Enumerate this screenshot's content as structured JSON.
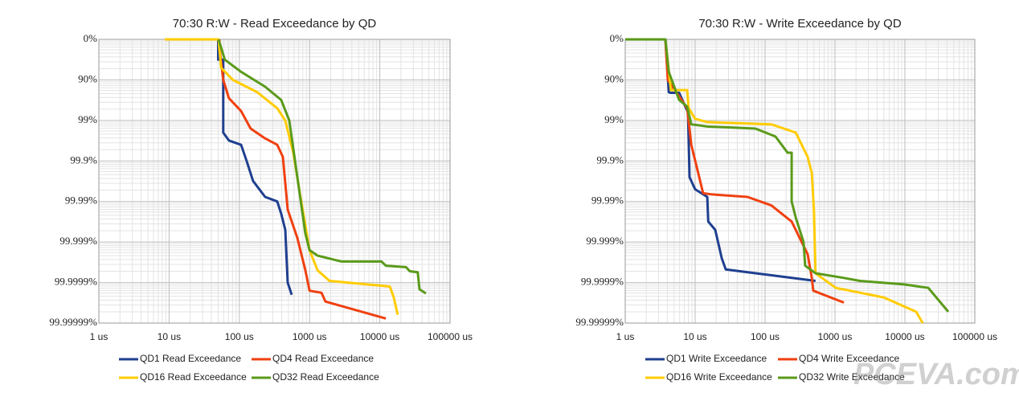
{
  "chart_data": [
    {
      "type": "line",
      "title": "70:30 R:W - Read Exceedance by QD",
      "xscale": "log",
      "yscale": "nines",
      "grid": true,
      "xlim": [
        1,
        100000
      ],
      "xticks": [
        {
          "value": 1,
          "label": "1 us"
        },
        {
          "value": 10,
          "label": "10 us"
        },
        {
          "value": 100,
          "label": "100 us"
        },
        {
          "value": 1000,
          "label": "1000 us"
        },
        {
          "value": 10000,
          "label": "10000 us"
        },
        {
          "value": 100000,
          "label": "100000 us"
        }
      ],
      "ylim": [
        0,
        99.99999
      ],
      "yticks": [
        {
          "value": 0,
          "label": "0%"
        },
        {
          "value": 90,
          "label": "90%"
        },
        {
          "value": 99,
          "label": "99%"
        },
        {
          "value": 99.9,
          "label": "99.9%"
        },
        {
          "value": 99.99,
          "label": "99.99%"
        },
        {
          "value": 99.999,
          "label": "99.999%"
        },
        {
          "value": 99.9999,
          "label": "99.9999%"
        },
        {
          "value": 99.99999,
          "label": "99.99999%"
        }
      ],
      "series": [
        {
          "name": "QD1 Read Exceedance",
          "color": "#1f3f8f",
          "x": [
            50,
            50,
            59,
            59,
            71,
            106,
            127,
            157,
            233,
            347,
            395,
            451,
            488,
            557
          ],
          "values": [
            0,
            68.4,
            68.4,
            99.5,
            99.68,
            99.75,
            99.9,
            99.968,
            99.987,
            99.99,
            99.995,
            99.998,
            99.9999,
            99.99995
          ]
        },
        {
          "name": "QD4 Read Exceedance",
          "color": "#f04010",
          "x": [
            52,
            52,
            59,
            71,
            106,
            145,
            233,
            347,
            417,
            488,
            670,
            871,
            1000,
            1480,
            1680,
            12200
          ],
          "values": [
            0,
            36.9,
            90,
            96.45,
            98.3,
            99.37,
            99.64,
            99.75,
            99.874,
            99.9937,
            99.99874,
            99.9998,
            99.999937,
            99.999944,
            99.999966,
            99.999987
          ]
        },
        {
          "name": "QD16 Read Exceedance",
          "color": "#ffcc00",
          "x": [
            8.7,
            50.7,
            54.8,
            81,
            179,
            347,
            451,
            586,
            763,
            1000,
            1300,
            1920,
            13900,
            15800,
            18000
          ],
          "values": [
            0,
            0,
            80,
            90,
            95,
            98,
            99,
            99.84,
            99.99,
            99.99937,
            99.9998,
            99.99989,
            99.99992,
            99.999957,
            99.999984
          ]
        },
        {
          "name": "QD32 Read Exceedance",
          "color": "#5a9a1a",
          "x": [
            50.7,
            62,
            106,
            233,
            395,
            515,
            670,
            871,
            1000,
            1300,
            2850,
            10600,
            12200,
            23600,
            26800,
            34700,
            36700,
            45400
          ],
          "values": [
            0,
            68.4,
            84.2,
            93.2,
            96.8,
            99,
            99.96,
            99.9984,
            99.99937,
            99.99954,
            99.99967,
            99.99967,
            99.99974,
            99.99976,
            99.99981,
            99.99982,
            99.999932,
            99.999946
          ]
        }
      ]
    },
    {
      "type": "line",
      "title": "70:30 R:W - Write Exceedance by QD",
      "xscale": "log",
      "yscale": "nines",
      "grid": true,
      "xlim": [
        1,
        100000
      ],
      "xticks": [
        {
          "value": 1,
          "label": "1 us"
        },
        {
          "value": 10,
          "label": "10 us"
        },
        {
          "value": 100,
          "label": "100 us"
        },
        {
          "value": 1000,
          "label": "1000 us"
        },
        {
          "value": 10000,
          "label": "10000 us"
        },
        {
          "value": 100000,
          "label": "100000 us"
        }
      ],
      "ylim": [
        0,
        99.99999
      ],
      "yticks": [
        {
          "value": 0,
          "label": "0%"
        },
        {
          "value": 90,
          "label": "90%"
        },
        {
          "value": 99,
          "label": "99%"
        },
        {
          "value": 99.9,
          "label": "99.9%"
        },
        {
          "value": 99.99,
          "label": "99.99%"
        },
        {
          "value": 99.999,
          "label": "99.999%"
        },
        {
          "value": 99.9999,
          "label": "99.9999%"
        },
        {
          "value": 99.99999,
          "label": "99.99999%"
        }
      ],
      "series": [
        {
          "name": "QD1 Write Exceedance",
          "color": "#1f3f8f",
          "x": [
            3.76,
            4.2,
            4.4,
            5.9,
            7,
            7.9,
            8.3,
            10,
            14.9,
            15.4,
            19.4,
            24,
            27.4,
            527
          ],
          "values": [
            0,
            95,
            95.2,
            95.2,
            97.5,
            98.4,
            99.96,
            99.98,
            99.987,
            99.9968,
            99.998,
            99.9996,
            99.99979,
            99.99989
          ]
        },
        {
          "name": "QD4 Write Exceedance",
          "color": "#f04010",
          "x": [
            3.76,
            4.07,
            7.7,
            8.8,
            10.8,
            13,
            17,
            56,
            123,
            240,
            407,
            467,
            490,
            1340
          ],
          "values": [
            0,
            90,
            98,
            99.75,
            99.94,
            99.984,
            99.985,
            99.987,
            99.992,
            99.9968,
            99.9995,
            99.99987,
            99.999937,
            99.999968
          ]
        },
        {
          "name": "QD16 Write Exceedance",
          "color": "#ffcc00",
          "x": [
            3.76,
            4.5,
            7.7,
            8.1,
            10,
            14.9,
            123,
            275,
            407,
            467,
            500,
            527,
            1030,
            5000,
            14500,
            18000
          ],
          "values": [
            0,
            94.4,
            94.4,
            98,
            98.9,
            99.09,
            99.2,
            99.5,
            99.874,
            99.95,
            99.9937,
            99.99983,
            99.999926,
            99.999957,
            99.999981,
            99.99999
          ]
        },
        {
          "name": "QD32 Write Exceedance",
          "color": "#5a9a1a",
          "x": [
            1,
            3.76,
            4.2,
            5.9,
            7.7,
            8.8,
            14.9,
            73,
            141,
            210,
            240,
            240,
            275,
            355,
            375,
            527,
            1340,
            2280,
            9800,
            21600,
            41700
          ],
          "values": [
            0,
            0,
            84.2,
            96.8,
            97.8,
            99.2,
            99.29,
            99.37,
            99.6,
            99.84,
            99.84,
            99.99,
            99.996,
            99.999,
            99.99974,
            99.99983,
            99.99987,
            99.99989,
            99.99991,
            99.999926,
            99.999981
          ]
        }
      ]
    }
  ],
  "watermark": "PCEVA.com.cn"
}
